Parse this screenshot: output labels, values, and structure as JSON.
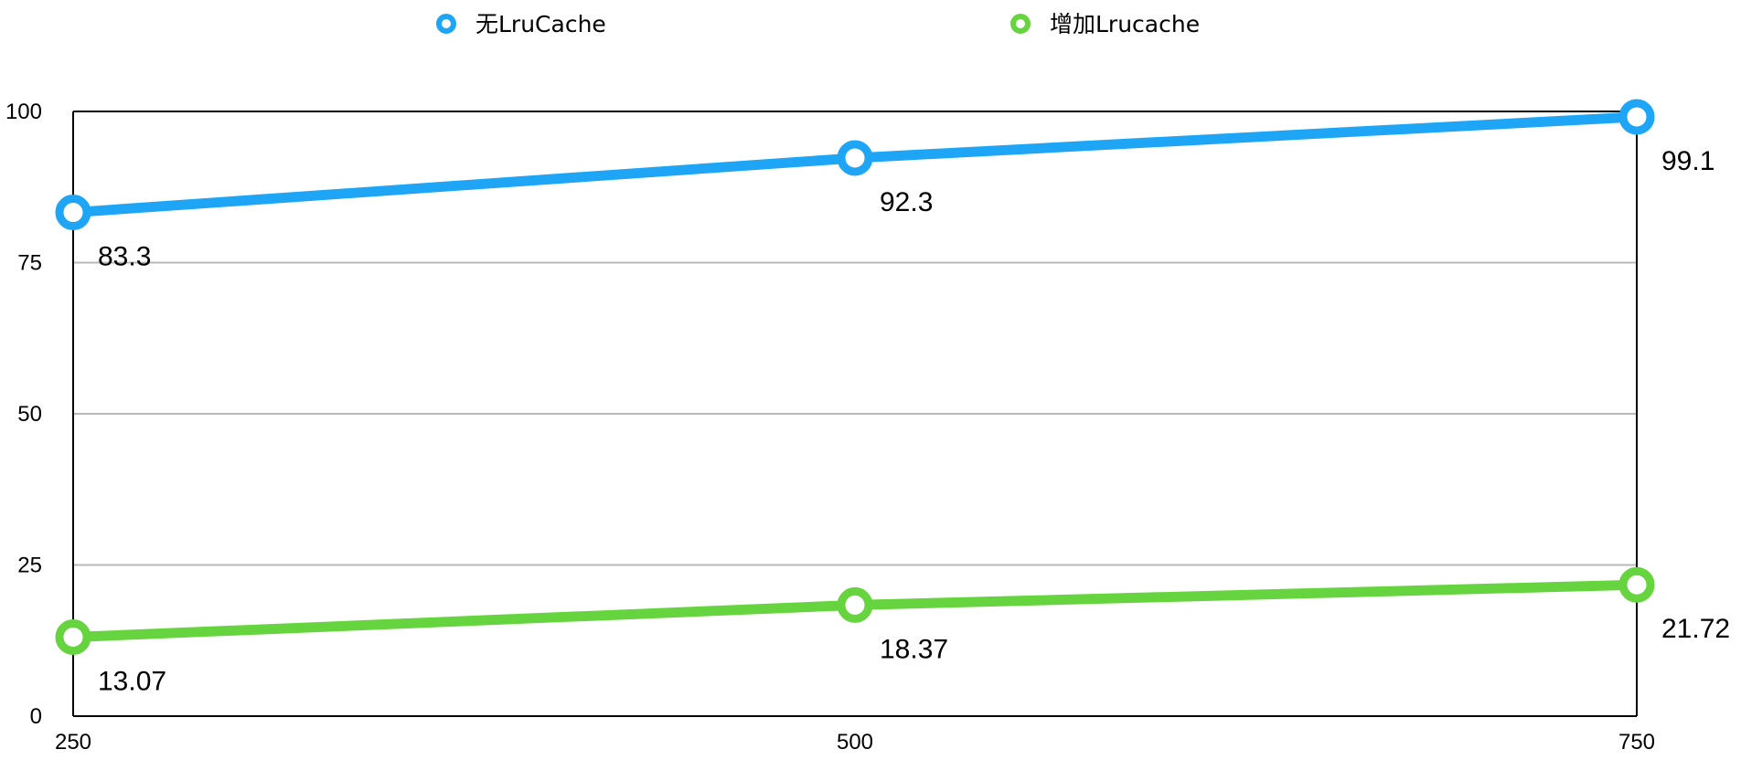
{
  "chart_data": {
    "type": "line",
    "x": [
      250,
      500,
      750
    ],
    "xlim": [
      250,
      750
    ],
    "ylim": [
      0,
      100
    ],
    "x_ticks": [
      250,
      500,
      750
    ],
    "y_ticks": [
      0,
      25,
      50,
      75,
      100
    ],
    "grid": true,
    "legend": "top",
    "series": [
      {
        "name": "无LruCache",
        "values": [
          83.3,
          92.3,
          99.1
        ],
        "labels": [
          "83.3",
          "92.3",
          "99.1"
        ],
        "color": "#1ea5f5"
      },
      {
        "name": "增加Lrucache",
        "values": [
          13.07,
          18.37,
          21.72
        ],
        "labels": [
          "13.07",
          "18.37",
          "21.72"
        ],
        "color": "#66d43e"
      }
    ]
  }
}
